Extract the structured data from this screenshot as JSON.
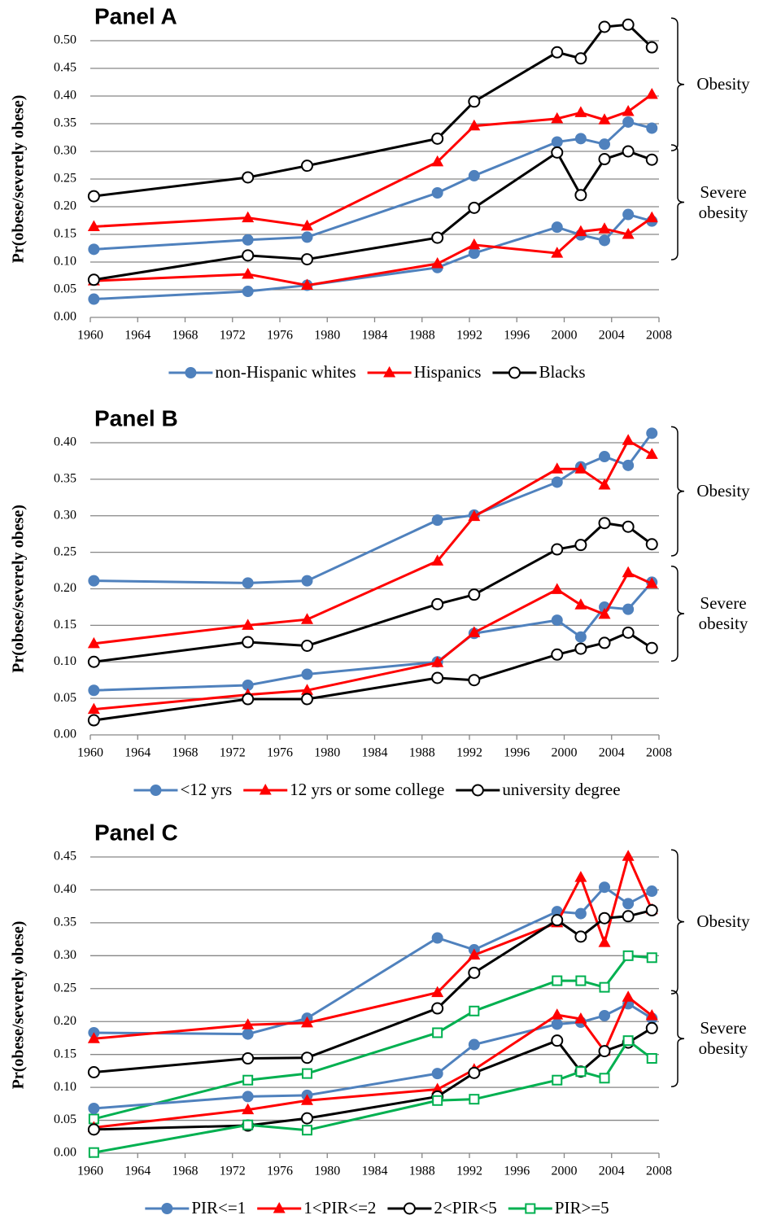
{
  "chart_data": [
    {
      "type": "line",
      "title": "Panel A",
      "y_label": "Pr(obese/severely obese)",
      "x": [
        1960.3,
        1973.3,
        1978.3,
        1989.3,
        1992.4,
        1999.4,
        2001.4,
        2003.4,
        2005.4,
        2007.4
      ],
      "xlim": [
        1960,
        2008
      ],
      "xticks": [
        1960,
        1964,
        1968,
        1972,
        1976,
        1980,
        1984,
        1988,
        1992,
        1996,
        2000,
        2004,
        2008
      ],
      "ylim": [
        0,
        0.5
      ],
      "yticks": [
        {
          "value": 0,
          "label": "0.00"
        },
        {
          "value": 0.05,
          "label": "0.05"
        },
        {
          "value": 0.1,
          "label": "0.10"
        },
        {
          "value": 0.15,
          "label": "0.15"
        },
        {
          "value": 0.2,
          "label": "0.20"
        },
        {
          "value": 0.25,
          "label": "0.25"
        },
        {
          "value": 0.3,
          "label": "0.30"
        },
        {
          "value": 0.35,
          "label": "0.35"
        },
        {
          "value": 0.4,
          "label": "0.40"
        },
        {
          "value": 0.45,
          "label": "0.45"
        },
        {
          "value": 0.5,
          "label": "0.50"
        }
      ],
      "grid": true,
      "series": [
        {
          "name": "non-Hispanic whites",
          "color": "#4f81bd",
          "marker": "circle",
          "values": [
            0.123,
            0.14,
            0.145,
            0.225,
            0.256,
            0.317,
            0.323,
            0.313,
            0.353,
            0.342
          ],
          "severe_values": [
            0.033,
            0.047,
            0.058,
            0.09,
            0.116,
            0.163,
            0.149,
            0.139,
            0.186,
            0.174
          ]
        },
        {
          "name": "Hispanics",
          "color": "#ff0000",
          "marker": "triangle",
          "values": [
            0.164,
            0.18,
            0.165,
            0.281,
            0.346,
            0.359,
            0.37,
            0.357,
            0.372,
            0.403
          ],
          "severe_values": [
            0.066,
            0.078,
            0.058,
            0.097,
            0.131,
            0.116,
            0.155,
            0.16,
            0.15,
            0.18
          ]
        },
        {
          "name": "Blacks",
          "color": "#000000",
          "marker": "circle-open",
          "values": [
            0.219,
            0.253,
            0.274,
            0.323,
            0.39,
            0.479,
            0.468,
            0.525,
            0.529,
            0.488
          ],
          "severe_values": [
            0.068,
            0.112,
            0.105,
            0.144,
            0.198,
            0.298,
            0.221,
            0.286,
            0.3,
            0.285
          ]
        }
      ],
      "annotations": [
        "Obesity",
        "Severe obesity"
      ]
    },
    {
      "type": "line",
      "title": "Panel B",
      "y_label": "Pr(obese/severely obese)",
      "x": [
        1960.3,
        1973.3,
        1978.3,
        1989.3,
        1992.4,
        1999.4,
        2001.4,
        2003.4,
        2005.4,
        2007.4
      ],
      "xlim": [
        1960,
        2008
      ],
      "xticks": [
        1960,
        1964,
        1968,
        1972,
        1976,
        1980,
        1984,
        1988,
        1992,
        1996,
        2000,
        2004,
        2008
      ],
      "ylim": [
        0,
        0.4
      ],
      "yticks": [
        {
          "value": 0,
          "label": "0.00"
        },
        {
          "value": 0.05,
          "label": "0.05"
        },
        {
          "value": 0.1,
          "label": "0.10"
        },
        {
          "value": 0.15,
          "label": "0.15"
        },
        {
          "value": 0.2,
          "label": "0.20"
        },
        {
          "value": 0.25,
          "label": "0.25"
        },
        {
          "value": 0.3,
          "label": "0.30"
        },
        {
          "value": 0.35,
          "label": "0.35"
        },
        {
          "value": 0.4,
          "label": "0.40"
        }
      ],
      "grid": true,
      "series": [
        {
          "name": "<12 yrs",
          "color": "#4f81bd",
          "marker": "circle",
          "values": [
            0.211,
            0.208,
            0.211,
            0.294,
            0.301,
            0.346,
            0.367,
            0.381,
            0.369,
            0.413
          ],
          "severe_values": [
            0.061,
            0.068,
            0.083,
            0.1,
            0.139,
            0.157,
            0.134,
            0.175,
            0.172,
            0.209
          ]
        },
        {
          "name": "12 yrs or some college",
          "color": "#ff0000",
          "marker": "triangle",
          "values": [
            0.125,
            0.15,
            0.158,
            0.238,
            0.299,
            0.364,
            0.364,
            0.342,
            0.403,
            0.384
          ],
          "severe_values": [
            0.035,
            0.055,
            0.061,
            0.099,
            0.14,
            0.199,
            0.178,
            0.165,
            0.222,
            0.207
          ]
        },
        {
          "name": "university degree",
          "color": "#000000",
          "marker": "circle-open",
          "values": [
            0.1,
            0.127,
            0.122,
            0.179,
            0.192,
            0.254,
            0.26,
            0.29,
            0.285,
            0.261
          ],
          "severe_values": [
            0.02,
            0.049,
            0.049,
            0.078,
            0.075,
            0.11,
            0.118,
            0.126,
            0.14,
            0.119
          ]
        }
      ],
      "annotations": [
        "Obesity",
        "Severe obesity"
      ]
    },
    {
      "type": "line",
      "title": "Panel C",
      "y_label": "Pr(obese/severely obese)",
      "x": [
        1960.3,
        1973.3,
        1978.3,
        1989.3,
        1992.4,
        1999.4,
        2001.4,
        2003.4,
        2005.4,
        2007.4
      ],
      "xlim": [
        1960,
        2008
      ],
      "xticks": [
        1960,
        1964,
        1968,
        1972,
        1976,
        1980,
        1984,
        1988,
        1992,
        1996,
        2000,
        2004,
        2008
      ],
      "ylim": [
        0,
        0.45
      ],
      "yticks": [
        {
          "value": 0,
          "label": "0.00"
        },
        {
          "value": 0.05,
          "label": "0.05"
        },
        {
          "value": 0.1,
          "label": "0.10"
        },
        {
          "value": 0.15,
          "label": "0.15"
        },
        {
          "value": 0.2,
          "label": "0.20"
        },
        {
          "value": 0.25,
          "label": "0.25"
        },
        {
          "value": 0.3,
          "label": "0.30"
        },
        {
          "value": 0.35,
          "label": "0.35"
        },
        {
          "value": 0.4,
          "label": "0.40"
        },
        {
          "value": 0.45,
          "label": "0.45"
        }
      ],
      "grid": true,
      "series": [
        {
          "name": "PIR<=1",
          "color": "#4f81bd",
          "marker": "circle",
          "values": [
            0.183,
            0.181,
            0.205,
            0.327,
            0.309,
            0.367,
            0.364,
            0.404,
            0.379,
            0.398
          ],
          "severe_values": [
            0.068,
            0.086,
            0.088,
            0.121,
            0.165,
            0.196,
            0.199,
            0.209,
            0.227,
            0.205
          ]
        },
        {
          "name": "1<PIR<=2",
          "color": "#ff0000",
          "marker": "triangle",
          "values": [
            0.174,
            0.195,
            0.198,
            0.244,
            0.301,
            0.35,
            0.419,
            0.32,
            0.451,
            0.37
          ],
          "severe_values": [
            0.039,
            0.066,
            0.08,
            0.097,
            0.127,
            0.21,
            0.204,
            0.155,
            0.237,
            0.209
          ]
        },
        {
          "name": "2<PIR<5",
          "color": "#000000",
          "marker": "circle-open",
          "values": [
            0.123,
            0.144,
            0.145,
            0.22,
            0.274,
            0.354,
            0.329,
            0.357,
            0.36,
            0.369
          ],
          "severe_values": [
            0.036,
            0.042,
            0.053,
            0.086,
            0.122,
            0.171,
            0.124,
            0.155,
            0.168,
            0.19
          ]
        },
        {
          "name": "PIR>=5",
          "color": "#00b050",
          "marker": "square-open",
          "values": [
            0.052,
            0.111,
            0.121,
            0.183,
            0.216,
            0.262,
            0.262,
            0.252,
            0.3,
            0.297
          ],
          "severe_values": [
            0.001,
            0.043,
            0.035,
            0.08,
            0.082,
            0.111,
            0.124,
            0.114,
            0.171,
            0.144
          ]
        }
      ],
      "annotations": [
        "Obesity",
        "Severe obesity"
      ]
    }
  ]
}
